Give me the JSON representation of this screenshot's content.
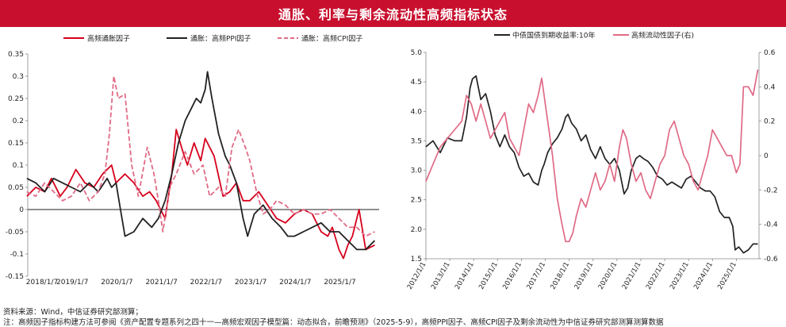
{
  "page": {
    "title": "通胀、利率与剩余流动性高频指标状态",
    "source": "资料来源：Wind，中信证券研究部测算；",
    "note": "注：高频因子指标构建方法可参阅《资产配置专题系列之四十一—高频宏观因子模型篇：动态拟合，前瞻预测》（2025-5-9），高频PPI因子、高频CPI因子及剩余流动性为中信证券研究部测算测算数据"
  },
  "colors": {
    "banner": "#c8102e",
    "red": "#d6001c",
    "black": "#222222",
    "pink": "#e06a85",
    "dash_pink": "#e06a85"
  },
  "chart_data": [
    {
      "type": "line",
      "legend_position": "top",
      "grid": false,
      "ylim": [
        -0.15,
        0.35
      ],
      "yticks": [
        "0.35",
        "0.3",
        "0.25",
        "0.2",
        "0.15",
        "0.1",
        "0.05",
        "0",
        "-0.05",
        "-0.1",
        "-0.15"
      ],
      "xlim": [
        2018.02,
        2025.9
      ],
      "xticks": [
        {
          "x": 2018.02,
          "label": "2018/1/7"
        },
        {
          "x": 2019.02,
          "label": "2019/1/7"
        },
        {
          "x": 2020.02,
          "label": "2020/1/7"
        },
        {
          "x": 2021.02,
          "label": "2021/1/7"
        },
        {
          "x": 2022.02,
          "label": "2022/1/7"
        },
        {
          "x": 2023.02,
          "label": "2023/1/7"
        },
        {
          "x": 2024.02,
          "label": "2024/1/7"
        },
        {
          "x": 2025.02,
          "label": "2025/1/7"
        }
      ],
      "series": [
        {
          "name": "高频通胀因子",
          "color": "#d6001c",
          "style": "solid",
          "x": [
            2018.0,
            2018.2,
            2018.4,
            2018.55,
            2018.75,
            2018.9,
            2019.1,
            2019.3,
            2019.5,
            2019.7,
            2019.9,
            2020.0,
            2020.2,
            2020.4,
            2020.6,
            2020.75,
            2020.9,
            2021.0,
            2021.1,
            2021.25,
            2021.35,
            2021.5,
            2021.6,
            2021.75,
            2021.9,
            2022.0,
            2022.2,
            2022.4,
            2022.55,
            2022.7,
            2022.85,
            2023.0,
            2023.2,
            2023.4,
            2023.6,
            2023.8,
            2024.0,
            2024.2,
            2024.4,
            2024.6,
            2024.75,
            2024.85,
            2025.0,
            2025.1,
            2025.2,
            2025.3,
            2025.45,
            2025.6,
            2025.8
          ],
          "values": [
            0.03,
            0.05,
            0.04,
            0.07,
            0.03,
            0.05,
            0.09,
            0.06,
            0.05,
            0.08,
            0.1,
            0.06,
            0.08,
            0.06,
            0.03,
            0.04,
            0.02,
            0.0,
            -0.02,
            0.08,
            0.18,
            0.13,
            0.1,
            0.15,
            0.11,
            0.16,
            0.12,
            0.03,
            0.04,
            0.06,
            0.02,
            0.02,
            0.04,
            0.01,
            -0.02,
            -0.03,
            -0.01,
            0.0,
            -0.01,
            -0.05,
            -0.06,
            -0.04,
            -0.09,
            -0.11,
            -0.08,
            -0.06,
            0.0,
            -0.09,
            -0.08
          ]
        },
        {
          "name": "通胀：高频PPI因子",
          "color": "#222222",
          "style": "solid",
          "x": [
            2018.0,
            2018.2,
            2018.4,
            2018.6,
            2018.8,
            2019.0,
            2019.2,
            2019.4,
            2019.6,
            2019.8,
            2019.9,
            2020.0,
            2020.1,
            2020.2,
            2020.4,
            2020.6,
            2020.8,
            2020.95,
            2021.1,
            2021.25,
            2021.4,
            2021.55,
            2021.7,
            2021.8,
            2021.9,
            2022.0,
            2022.05,
            2022.15,
            2022.3,
            2022.45,
            2022.55,
            2022.7,
            2022.85,
            2022.95,
            2023.1,
            2023.3,
            2023.5,
            2023.7,
            2023.85,
            2024.0,
            2024.2,
            2024.4,
            2024.6,
            2024.8,
            2025.0,
            2025.2,
            2025.4,
            2025.6,
            2025.8
          ],
          "values": [
            0.07,
            0.06,
            0.04,
            0.07,
            0.06,
            0.05,
            0.04,
            0.06,
            0.04,
            0.07,
            0.05,
            0.06,
            0.0,
            -0.06,
            -0.05,
            -0.02,
            -0.04,
            -0.02,
            0.02,
            0.08,
            0.15,
            0.2,
            0.23,
            0.25,
            0.24,
            0.27,
            0.31,
            0.25,
            0.17,
            0.12,
            0.1,
            0.06,
            -0.02,
            -0.06,
            -0.01,
            0.01,
            -0.02,
            -0.04,
            -0.06,
            -0.06,
            -0.05,
            -0.04,
            -0.03,
            -0.05,
            -0.05,
            -0.07,
            -0.09,
            -0.09,
            -0.07
          ]
        },
        {
          "name": "通胀：高频CPI因子",
          "color": "#e06a85",
          "style": "dashed",
          "x": [
            2018.0,
            2018.2,
            2018.4,
            2018.6,
            2018.8,
            2019.0,
            2019.2,
            2019.4,
            2019.6,
            2019.75,
            2019.85,
            2019.95,
            2020.05,
            2020.2,
            2020.35,
            2020.5,
            2020.7,
            2020.85,
            2020.95,
            2021.05,
            2021.2,
            2021.35,
            2021.55,
            2021.75,
            2021.95,
            2022.1,
            2022.3,
            2022.45,
            2022.6,
            2022.75,
            2022.9,
            2023.0,
            2023.15,
            2023.3,
            2023.45,
            2023.6,
            2023.8,
            2024.0,
            2024.2,
            2024.4,
            2024.6,
            2024.8,
            2025.0,
            2025.2,
            2025.4,
            2025.6,
            2025.8
          ],
          "values": [
            0.04,
            0.03,
            0.06,
            0.04,
            0.02,
            0.03,
            0.06,
            0.02,
            0.04,
            0.08,
            0.17,
            0.3,
            0.25,
            0.26,
            0.1,
            0.03,
            0.14,
            0.08,
            0.02,
            -0.05,
            0.05,
            0.08,
            0.13,
            0.08,
            0.1,
            0.03,
            0.05,
            0.03,
            0.14,
            0.18,
            0.14,
            0.11,
            0.04,
            -0.01,
            0.0,
            0.02,
            0.01,
            -0.01,
            0.0,
            -0.01,
            -0.01,
            0.0,
            -0.02,
            -0.04,
            -0.04,
            -0.06,
            -0.05
          ]
        }
      ]
    },
    {
      "type": "line",
      "legend_position": "top",
      "grid": false,
      "ylim_left": [
        1.5,
        5.0
      ],
      "yticks_left": [
        "5.0",
        "4.5",
        "4.0",
        "3.5",
        "3.0",
        "2.5",
        "2.0",
        "1.5"
      ],
      "ylim_right": [
        -0.6,
        0.6
      ],
      "yticks_right": [
        "0.6",
        "0.4",
        "0.2",
        "0",
        "-0.2",
        "-0.4",
        "-0.6"
      ],
      "xlim": [
        2012.0,
        2025.95
      ],
      "xticks": [
        {
          "x": 2012.0,
          "label": "2012/1/1"
        },
        {
          "x": 2013.0,
          "label": "2013/1/1"
        },
        {
          "x": 2014.0,
          "label": "2014/1/1"
        },
        {
          "x": 2015.0,
          "label": "2015/1/1"
        },
        {
          "x": 2016.0,
          "label": "2016/1/1"
        },
        {
          "x": 2017.0,
          "label": "2017/1/1"
        },
        {
          "x": 2018.0,
          "label": "2018/1/1"
        },
        {
          "x": 2019.0,
          "label": "2019/1/1"
        },
        {
          "x": 2020.0,
          "label": "2020/1/1"
        },
        {
          "x": 2021.0,
          "label": "2021/1/1"
        },
        {
          "x": 2022.0,
          "label": "2022/1/1"
        },
        {
          "x": 2023.0,
          "label": "2023/1/1"
        },
        {
          "x": 2024.0,
          "label": "2024/1/1"
        },
        {
          "x": 2025.0,
          "label": "2025/1/1"
        }
      ],
      "series": [
        {
          "name": "中债国债到期收益率:10年",
          "color": "#222222",
          "axis": "left",
          "x": [
            2012.0,
            2012.3,
            2012.6,
            2012.9,
            2013.2,
            2013.5,
            2013.7,
            2013.85,
            2013.95,
            2014.1,
            2014.3,
            2014.5,
            2014.7,
            2014.9,
            2015.1,
            2015.3,
            2015.5,
            2015.7,
            2015.9,
            2016.1,
            2016.3,
            2016.5,
            2016.7,
            2016.85,
            2016.95,
            2017.1,
            2017.3,
            2017.5,
            2017.7,
            2017.85,
            2017.95,
            2018.1,
            2018.3,
            2018.5,
            2018.7,
            2018.9,
            2019.1,
            2019.3,
            2019.5,
            2019.7,
            2019.9,
            2020.1,
            2020.3,
            2020.45,
            2020.6,
            2020.8,
            2020.95,
            2021.1,
            2021.3,
            2021.5,
            2021.7,
            2021.9,
            2022.1,
            2022.3,
            2022.5,
            2022.7,
            2022.9,
            2023.1,
            2023.3,
            2023.5,
            2023.7,
            2023.9,
            2024.1,
            2024.3,
            2024.5,
            2024.7,
            2024.85,
            2024.95,
            2025.1,
            2025.3,
            2025.5,
            2025.7,
            2025.9
          ],
          "values": [
            3.4,
            3.5,
            3.3,
            3.55,
            3.5,
            3.5,
            3.9,
            4.4,
            4.55,
            4.6,
            4.2,
            4.3,
            4.0,
            3.6,
            3.4,
            3.6,
            3.4,
            3.3,
            3.05,
            2.9,
            2.95,
            2.8,
            2.75,
            3.0,
            3.1,
            3.3,
            3.45,
            3.55,
            3.7,
            3.9,
            3.95,
            3.8,
            3.7,
            3.5,
            3.6,
            3.35,
            3.2,
            3.4,
            3.2,
            3.1,
            3.2,
            3.0,
            2.6,
            2.7,
            3.0,
            3.2,
            3.25,
            3.2,
            3.15,
            3.05,
            2.9,
            2.85,
            2.75,
            2.8,
            2.75,
            2.7,
            2.85,
            2.9,
            2.8,
            2.7,
            2.65,
            2.65,
            2.55,
            2.3,
            2.2,
            2.2,
            2.05,
            1.65,
            1.7,
            1.6,
            1.65,
            1.75,
            1.75
          ]
        },
        {
          "name": "高频流动性因子(右)",
          "color": "#e06a85",
          "axis": "right",
          "x": [
            2012.0,
            2012.3,
            2012.6,
            2012.9,
            2013.2,
            2013.5,
            2013.7,
            2013.9,
            2014.1,
            2014.3,
            2014.5,
            2014.7,
            2014.9,
            2015.1,
            2015.3,
            2015.5,
            2015.7,
            2015.9,
            2016.1,
            2016.3,
            2016.5,
            2016.7,
            2016.85,
            2017.0,
            2017.15,
            2017.3,
            2017.5,
            2017.7,
            2017.85,
            2018.0,
            2018.15,
            2018.3,
            2018.5,
            2018.7,
            2018.9,
            2019.1,
            2019.3,
            2019.5,
            2019.7,
            2019.9,
            2020.1,
            2020.25,
            2020.4,
            2020.6,
            2020.8,
            2021.0,
            2021.2,
            2021.4,
            2021.6,
            2021.8,
            2022.0,
            2022.2,
            2022.4,
            2022.6,
            2022.8,
            2023.0,
            2023.2,
            2023.4,
            2023.6,
            2023.8,
            2024.0,
            2024.2,
            2024.4,
            2024.6,
            2024.8,
            2025.0,
            2025.15,
            2025.3,
            2025.5,
            2025.7,
            2025.9
          ],
          "values": [
            -0.15,
            -0.05,
            0.05,
            0.1,
            0.15,
            0.2,
            0.35,
            0.3,
            0.2,
            0.3,
            0.2,
            0.1,
            0.15,
            0.2,
            0.25,
            0.1,
            0.05,
            0.0,
            0.15,
            0.3,
            0.25,
            0.35,
            0.45,
            0.3,
            0.15,
            0.0,
            -0.25,
            -0.4,
            -0.5,
            -0.5,
            -0.45,
            -0.35,
            -0.25,
            -0.3,
            -0.2,
            -0.1,
            -0.2,
            -0.15,
            -0.05,
            -0.15,
            0.05,
            0.15,
            0.1,
            -0.05,
            -0.15,
            -0.1,
            -0.2,
            -0.25,
            -0.15,
            -0.05,
            0.0,
            0.15,
            0.2,
            0.1,
            0.0,
            -0.05,
            -0.15,
            -0.2,
            -0.1,
            0.0,
            0.15,
            0.1,
            0.05,
            0.0,
            0.0,
            -0.1,
            -0.05,
            0.4,
            0.4,
            0.35,
            0.5
          ]
        }
      ]
    }
  ]
}
